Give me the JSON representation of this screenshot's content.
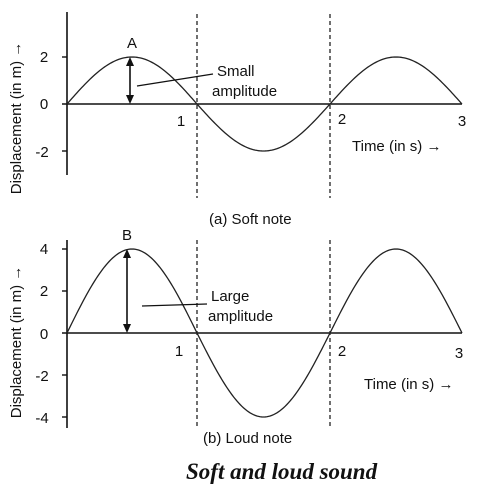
{
  "figure_caption": "Soft and loud sound",
  "chart_data": [
    {
      "type": "line",
      "caption": "(a) Soft note",
      "xlabel": "Time (in s) →",
      "ylabel": "Displacement (in m) →",
      "xlim": [
        0,
        3
      ],
      "ylim": [
        -2,
        2
      ],
      "x_ticks": [
        "1",
        "2",
        "3"
      ],
      "y_ticks": [
        "2",
        "0",
        "-2"
      ],
      "y_tick_values": [
        2,
        0,
        -2
      ],
      "series": [
        {
          "x": [
            0,
            0.25,
            0.5,
            0.75,
            1,
            1.25,
            1.5,
            1.75,
            2,
            2.25,
            2.5,
            2.75,
            3
          ],
          "y": [
            0,
            1.41,
            2,
            1.41,
            0,
            -1.41,
            -2,
            -1.41,
            0,
            1.41,
            2,
            1.41,
            0
          ]
        }
      ],
      "dashed_verticals": [
        1,
        2
      ],
      "peak_label": "A",
      "annotation": [
        "Small",
        "amplitude"
      ],
      "amplitude": 2
    },
    {
      "type": "line",
      "caption": "(b) Loud note",
      "xlabel": "Time (in s) →",
      "ylabel": "Displacement (in m) →",
      "xlim": [
        0,
        3
      ],
      "ylim": [
        -4,
        4
      ],
      "x_ticks": [
        "1",
        "2",
        "3"
      ],
      "y_ticks": [
        "4",
        "2",
        "0",
        "-2",
        "-4"
      ],
      "y_tick_values": [
        4,
        2,
        0,
        -2,
        -4
      ],
      "series": [
        {
          "x": [
            0,
            0.25,
            0.5,
            0.75,
            1,
            1.25,
            1.5,
            1.75,
            2,
            2.25,
            2.5,
            2.75,
            3
          ],
          "y": [
            0,
            2.83,
            4,
            2.83,
            0,
            -2.83,
            -4,
            -2.83,
            0,
            2.83,
            4,
            2.83,
            0
          ]
        }
      ],
      "dashed_verticals": [
        1,
        2
      ],
      "peak_label": "B",
      "annotation": [
        "Large",
        "amplitude"
      ],
      "amplitude": 4
    }
  ]
}
